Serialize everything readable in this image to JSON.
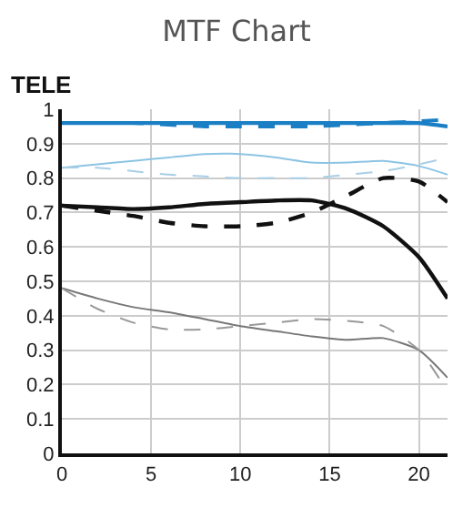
{
  "chart_data": {
    "type": "line",
    "title": "MTF Chart",
    "subtitle": "TELE",
    "x": [
      0,
      2,
      4,
      6,
      8,
      10,
      12,
      14,
      16,
      18,
      20,
      21.6
    ],
    "series": [
      {
        "color": "#1a7fc4",
        "line_style": "solid",
        "values": [
          0.96,
          0.96,
          0.96,
          0.96,
          0.96,
          0.96,
          0.96,
          0.96,
          0.96,
          0.96,
          0.96,
          0.95
        ]
      },
      {
        "color": "#1a7fc4",
        "line_style": "dashed",
        "values": [
          0.96,
          0.96,
          0.96,
          0.955,
          0.95,
          0.95,
          0.95,
          0.95,
          0.955,
          0.96,
          0.965,
          0.97
        ]
      },
      {
        "color": "#8cc4e4",
        "line_style": "solid",
        "values": [
          0.83,
          0.84,
          0.85,
          0.86,
          0.87,
          0.87,
          0.86,
          0.845,
          0.845,
          0.85,
          0.835,
          0.81
        ]
      },
      {
        "color": "#a8cfe6",
        "line_style": "dashed",
        "values": [
          0.83,
          0.83,
          0.82,
          0.81,
          0.805,
          0.8,
          0.8,
          0.8,
          0.81,
          0.82,
          0.84,
          0.86
        ]
      },
      {
        "color": "#111111",
        "line_style": "solid",
        "values": [
          0.72,
          0.715,
          0.71,
          0.715,
          0.725,
          0.73,
          0.735,
          0.735,
          0.71,
          0.66,
          0.57,
          0.45
        ]
      },
      {
        "color": "#111111",
        "line_style": "dashed",
        "values": [
          0.72,
          0.705,
          0.69,
          0.67,
          0.66,
          0.66,
          0.67,
          0.7,
          0.75,
          0.8,
          0.79,
          0.73
        ]
      },
      {
        "color": "#777777",
        "line_style": "solid",
        "values": [
          0.48,
          0.45,
          0.425,
          0.41,
          0.39,
          0.37,
          0.355,
          0.34,
          0.33,
          0.335,
          0.3,
          0.22
        ]
      },
      {
        "color": "#999999",
        "line_style": "dashed",
        "values": [
          0.48,
          0.42,
          0.38,
          0.36,
          0.36,
          0.37,
          0.38,
          0.39,
          0.385,
          0.37,
          0.3,
          0.18
        ]
      }
    ],
    "xlim": [
      0,
      21.6
    ],
    "xticks": [
      0,
      5,
      10,
      15,
      20
    ],
    "ylim": [
      0,
      1
    ],
    "yticks": [
      0,
      0.1,
      0.2,
      0.3,
      0.4,
      0.5,
      0.6,
      0.7,
      0.8,
      0.9,
      1
    ],
    "grid": true
  }
}
